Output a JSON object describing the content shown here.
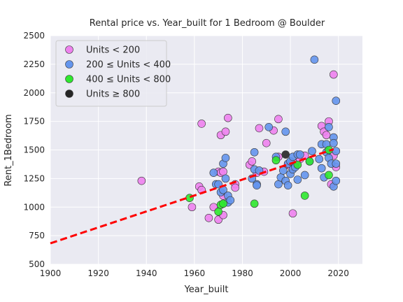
{
  "chart_data": {
    "type": "scatter",
    "title": "Rental price vs. Year_built for 1 Bedroom @ Boulder",
    "xlabel": "Year_built",
    "ylabel": "Rent_1Bedroom",
    "xlim": [
      1900,
      2030
    ],
    "ylim": [
      500,
      2500
    ],
    "xticks": [
      1900,
      1920,
      1940,
      1960,
      1980,
      2000,
      2020
    ],
    "yticks": [
      500,
      750,
      1000,
      1250,
      1500,
      1750,
      2000,
      2250,
      2500
    ],
    "grid": true,
    "background": "#eaeaf2",
    "legend_position": "top-left",
    "series": [
      {
        "name": "Units < 200",
        "color": "#ee82ee",
        "points": [
          [
            1938,
            1230
          ],
          [
            1959,
            1000
          ],
          [
            1962,
            1180
          ],
          [
            1963,
            1730
          ],
          [
            1963,
            1150
          ],
          [
            1966,
            905
          ],
          [
            1968,
            1000
          ],
          [
            1970,
            890
          ],
          [
            1970,
            1310
          ],
          [
            1971,
            1630
          ],
          [
            1971,
            1300
          ],
          [
            1972,
            1310
          ],
          [
            1972,
            1100
          ],
          [
            1972,
            930
          ],
          [
            1973,
            1660
          ],
          [
            1974,
            1780
          ],
          [
            1977,
            1200
          ],
          [
            1977,
            1170
          ],
          [
            1983,
            1370
          ],
          [
            1984,
            1400
          ],
          [
            1986,
            1300
          ],
          [
            1987,
            1690
          ],
          [
            1989,
            1310
          ],
          [
            1990,
            1560
          ],
          [
            1993,
            1670
          ],
          [
            1995,
            1440
          ],
          [
            1995,
            1770
          ],
          [
            1999,
            1370
          ],
          [
            2000,
            1360
          ],
          [
            2001,
            945
          ],
          [
            2002,
            1380
          ],
          [
            2004,
            1420
          ],
          [
            2006,
            1450
          ],
          [
            2013,
            1710
          ],
          [
            2014,
            1660
          ],
          [
            2015,
            1630
          ],
          [
            2016,
            1750
          ],
          [
            2017,
            1200
          ],
          [
            2018,
            2160
          ],
          [
            2018,
            1450
          ],
          [
            2019,
            1350
          ]
        ]
      },
      {
        "name": "200 ≤ Units < 400",
        "color": "#6495ed",
        "points": [
          [
            1968,
            1300
          ],
          [
            1969,
            1200
          ],
          [
            1970,
            1200
          ],
          [
            1971,
            1130
          ],
          [
            1972,
            1380
          ],
          [
            1972,
            1150
          ],
          [
            1973,
            1430
          ],
          [
            1973,
            1250
          ],
          [
            1974,
            1100
          ],
          [
            1974,
            1040
          ],
          [
            1975,
            1060
          ],
          [
            1984,
            1250
          ],
          [
            1985,
            1480
          ],
          [
            1985,
            1330
          ],
          [
            1986,
            1200
          ],
          [
            1986,
            1190
          ],
          [
            1987,
            1320
          ],
          [
            1991,
            1700
          ],
          [
            1994,
            1440
          ],
          [
            1995,
            1200
          ],
          [
            1996,
            1260
          ],
          [
            1997,
            1320
          ],
          [
            1998,
            1660
          ],
          [
            1998,
            1230
          ],
          [
            1999,
            1190
          ],
          [
            1999,
            1380
          ],
          [
            2000,
            1400
          ],
          [
            2000,
            1290
          ],
          [
            2001,
            1440
          ],
          [
            2001,
            1330
          ],
          [
            2002,
            1350
          ],
          [
            2003,
            1460
          ],
          [
            2003,
            1240
          ],
          [
            2004,
            1460
          ],
          [
            2006,
            1280
          ],
          [
            2008,
            1400
          ],
          [
            2009,
            1490
          ],
          [
            2010,
            2290
          ],
          [
            2012,
            1420
          ],
          [
            2013,
            1550
          ],
          [
            2013,
            1340
          ],
          [
            2014,
            1260
          ],
          [
            2015,
            1550
          ],
          [
            2015,
            1480
          ],
          [
            2016,
            1700
          ],
          [
            2016,
            1430
          ],
          [
            2017,
            1380
          ],
          [
            2018,
            1610
          ],
          [
            2018,
            1560
          ],
          [
            2018,
            1180
          ],
          [
            2019,
            1930
          ],
          [
            2019,
            1490
          ],
          [
            2019,
            1380
          ],
          [
            2019,
            1230
          ]
        ]
      },
      {
        "name": "400 ≤ Units < 800",
        "color": "#2ee82e",
        "points": [
          [
            1958,
            1080
          ],
          [
            1970,
            960
          ],
          [
            1971,
            1020
          ],
          [
            1972,
            1030
          ],
          [
            1985,
            1030
          ],
          [
            1994,
            1410
          ],
          [
            2003,
            1370
          ],
          [
            2006,
            1100
          ],
          [
            2008,
            1400
          ],
          [
            2016,
            1280
          ],
          [
            2016,
            1500
          ]
        ]
      },
      {
        "name": "Units ≥ 800",
        "color": "#262626",
        "points": [
          [
            1998,
            1460
          ]
        ]
      }
    ],
    "trend_line": {
      "style": "dashed",
      "color": "#ff0000",
      "x": [
        1900,
        2018
      ],
      "y": [
        683,
        1506
      ]
    }
  }
}
